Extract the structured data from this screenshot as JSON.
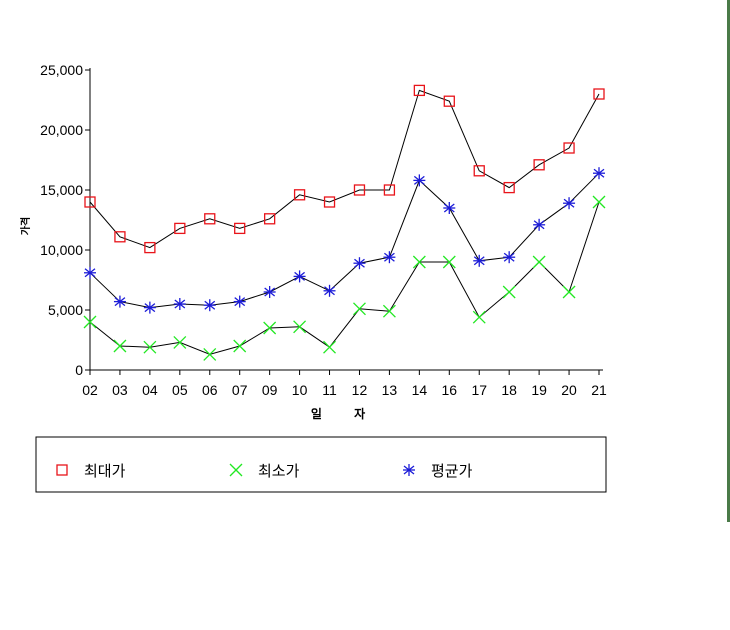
{
  "chart_data": {
    "type": "line",
    "title": "",
    "xlabel": "일 자",
    "ylabel": "가격",
    "categories": [
      "02",
      "03",
      "04",
      "05",
      "06",
      "07",
      "09",
      "10",
      "11",
      "12",
      "13",
      "14",
      "16",
      "17",
      "18",
      "19",
      "20",
      "21"
    ],
    "ylim": [
      0,
      25000
    ],
    "yticks": [
      0,
      5000,
      10000,
      15000,
      20000,
      25000
    ],
    "ytick_labels": [
      "0",
      "5,000",
      "10,000",
      "15,000",
      "20,000",
      "25,000"
    ],
    "grid": false,
    "legend_position": "bottom",
    "series": [
      {
        "name": "최대가",
        "marker": "square",
        "color": "#e8141a",
        "values": [
          14000,
          11100,
          10200,
          11800,
          12600,
          11800,
          12600,
          14600,
          14000,
          15000,
          15000,
          23300,
          22400,
          16600,
          15200,
          17100,
          18500,
          23000
        ]
      },
      {
        "name": "최소가",
        "marker": "x",
        "color": "#22e822",
        "values": [
          4000,
          2000,
          1900,
          2300,
          1300,
          2000,
          3500,
          3600,
          1900,
          5100,
          4900,
          9000,
          9000,
          4400,
          6500,
          9000,
          6500,
          14000
        ]
      },
      {
        "name": "평균가",
        "marker": "asterisk",
        "color": "#1c1cd8",
        "values": [
          8100,
          5700,
          5200,
          5500,
          5400,
          5700,
          6500,
          7800,
          6600,
          8900,
          9400,
          15800,
          13500,
          9100,
          9400,
          12100,
          13900,
          16400
        ]
      }
    ]
  }
}
